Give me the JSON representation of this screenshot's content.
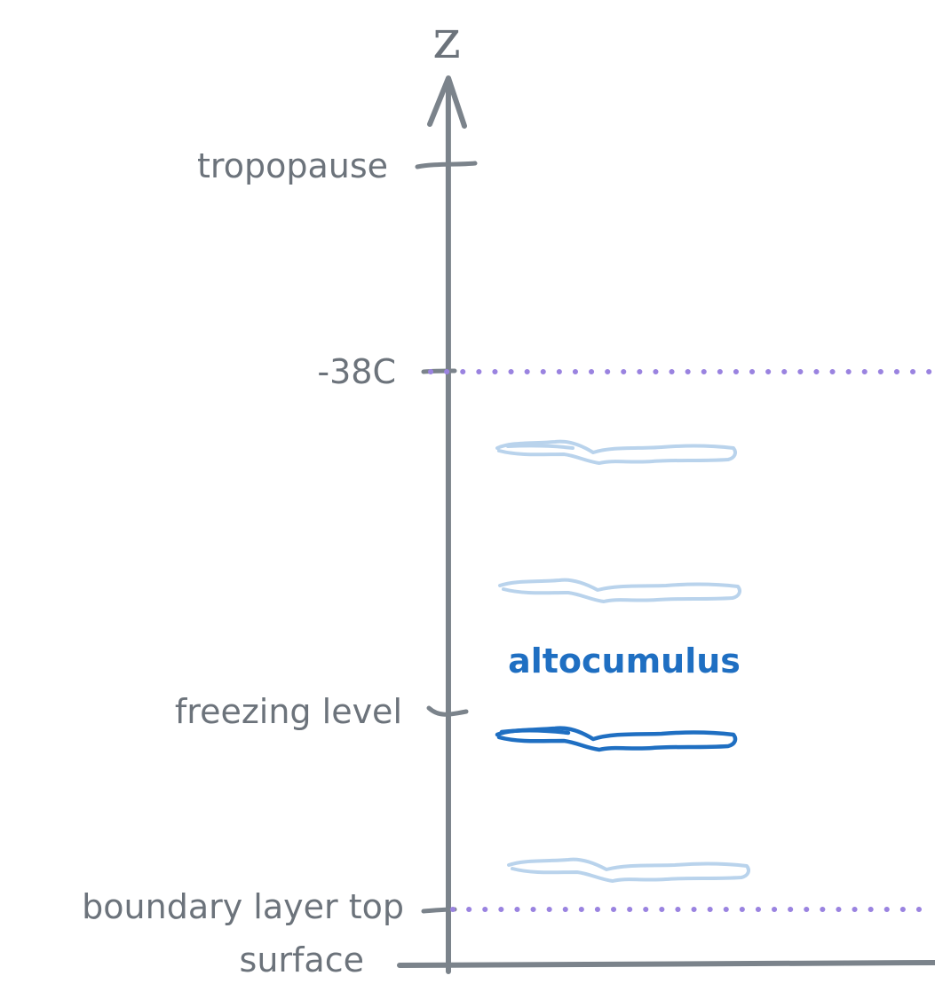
{
  "axis": {
    "title": "z"
  },
  "levels": {
    "tropopause": "tropopause",
    "minus38": "-38C",
    "freezing": "freezing level",
    "boundary": "boundary layer top",
    "surface": "surface"
  },
  "clouds": {
    "highlight_label": "altocumulus"
  },
  "colors": {
    "axis": "#7b838b",
    "text": "#6c737b",
    "dotted_line": "#9a83e0",
    "cloud_faded": "#b9d3ec",
    "cloud_highlight": "#1f6fc2"
  }
}
